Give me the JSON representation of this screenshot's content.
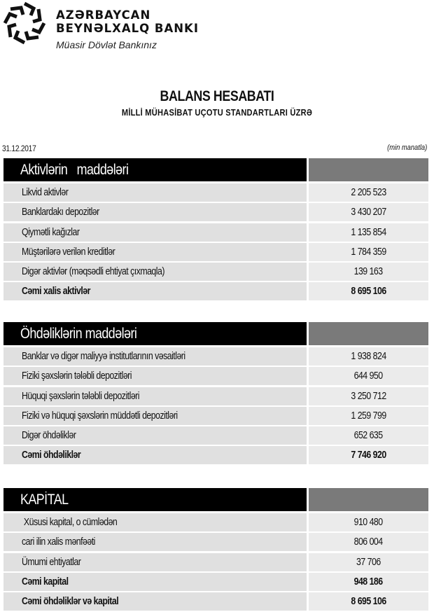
{
  "header": {
    "bank_line1": "AZƏRBAYCAN",
    "bank_line2": "BEYNƏLXALQ BANKI",
    "tagline": "Müasir Dövlət Bankınız",
    "logo_icon": "star-knot-logo"
  },
  "report": {
    "title": "BALANS HESABATI",
    "subtitle": "MİLLİ MÜHASİBAT UÇOTU STANDARTLARI ÜZRƏ",
    "date": "31.12.2017",
    "unit": "(min manatla)"
  },
  "sections": [
    {
      "title": "Aktivlərin   maddələri",
      "rows": [
        {
          "label": "Likvid aktivlər",
          "value": "2 205 523"
        },
        {
          "label": "Banklardakı depozitlər",
          "value": "3 430 207"
        },
        {
          "label": "Qiymətli kağızlar",
          "value": "1 135 854"
        },
        {
          "label": "Müştərilərə verilən kreditlər",
          "value": "1 784 359"
        },
        {
          "label": "Digər aktivlər (məqsədli ehtiyat çıxmaqla)",
          "value": "139 163"
        },
        {
          "label": "Cəmi xalis aktivlər",
          "value": "8 695 106",
          "total": true
        }
      ]
    },
    {
      "title": "Öhdəliklərin maddələri",
      "rows": [
        {
          "label": "Banklar və digər maliyyə institutlarının vəsaitləri",
          "value": "1 938 824"
        },
        {
          "label": "Fiziki şəxslərin tələbli depozitləri",
          "value": "644 950"
        },
        {
          "label": "Hüquqi şəxslərin tələbli depozitləri",
          "value": "3 250 712"
        },
        {
          "label": "Fiziki və hüquqi şəxslərin müddətli depozitləri",
          "value": "1 259 799"
        },
        {
          "label": "Digər öhdəliklər",
          "value": "652 635"
        },
        {
          "label": "Cəmi öhdəliklər",
          "value": "7 746 920",
          "total": true
        }
      ]
    },
    {
      "title": "KAPİTAL",
      "rows": [
        {
          "label": " Xüsusi kapital, o cümlədən",
          "value": "910 480"
        },
        {
          "label": "cari ilin xalis mənfəəti",
          "value": "806 004"
        },
        {
          "label": "Ümumi ehtiyatlar",
          "value": "37 706"
        },
        {
          "label": "Cəmi kapital",
          "value": "948 186",
          "total": true
        },
        {
          "label": "Cəmi öhdəliklər və kapital",
          "value": "8 695 106",
          "total": true
        }
      ]
    }
  ]
}
